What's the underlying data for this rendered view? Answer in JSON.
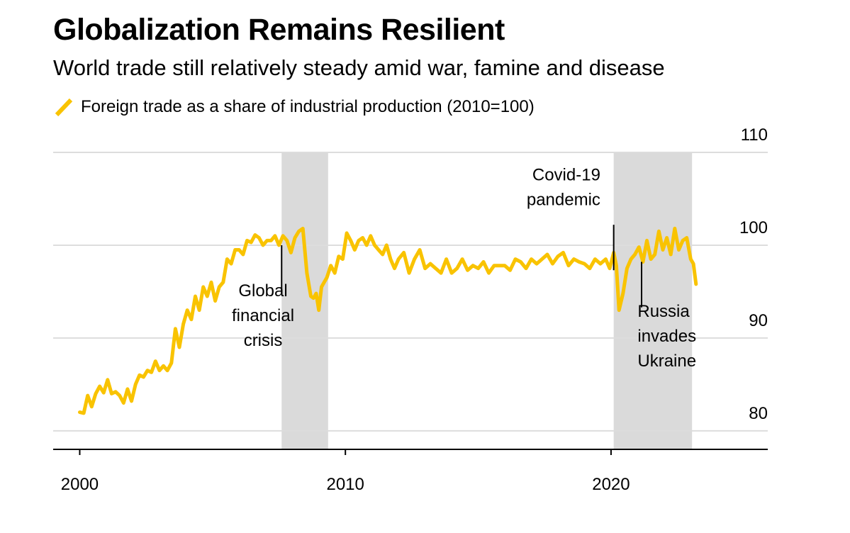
{
  "header": {
    "title": "Globalization Remains Resilient",
    "subtitle": "World trade still relatively steady amid war, famine and disease"
  },
  "legend": {
    "label": "Foreign trade as a share of industrial production (2010=100)"
  },
  "colors": {
    "series": "#f9c300",
    "shade": "#dadada",
    "grid": "#dddddd",
    "axis": "#000000"
  },
  "chart_data": {
    "type": "line",
    "title": "Globalization Remains Resilient",
    "subtitle": "World trade still relatively steady amid war, famine and disease",
    "xlabel": "",
    "ylabel": "",
    "xlim": [
      1999,
      2025.9
    ],
    "ylim": [
      78,
      110
    ],
    "y_axis_side": "right",
    "grid": true,
    "legend_placement": "top-left",
    "x_ticks": [
      {
        "x": 2000,
        "label": "2000"
      },
      {
        "x": 2010,
        "label": "2010"
      },
      {
        "x": 2020,
        "label": "2020"
      }
    ],
    "y_ticks": [
      {
        "y": 110,
        "label": "110"
      },
      {
        "y": 100,
        "label": "100"
      },
      {
        "y": 90,
        "label": "90"
      },
      {
        "y": 80,
        "label": "80"
      }
    ],
    "shaded_periods": [
      {
        "start": 2007.6,
        "end": 2009.35
      },
      {
        "start": 2020.1,
        "end": 2023.05
      }
    ],
    "annotations": [
      {
        "lines": [
          "Global",
          "financial",
          "crisis"
        ],
        "x": 2007.6,
        "y_from": 100.0,
        "y_to": 94.7,
        "text_x": 2006.9,
        "text_y": 94.5,
        "align": "middle"
      },
      {
        "lines": [
          "Covid-19",
          "pandemic"
        ],
        "x": 2020.1,
        "y_from": 97.3,
        "y_to": 102.2,
        "text_x": 2019.6,
        "text_y": 107.0,
        "align": "end"
      },
      {
        "lines": [
          "Russia",
          "invades",
          "Ukraine"
        ],
        "x": 2021.15,
        "y_from": 98.2,
        "y_to": 93.3,
        "text_x": 2021.0,
        "text_y": 92.3,
        "align": "start"
      }
    ],
    "series": [
      {
        "name": "Foreign trade as a share of industrial production (2010=100)",
        "x": [
          2000.0,
          2000.15,
          2000.3,
          2000.45,
          2000.6,
          2000.75,
          2000.9,
          2001.05,
          2001.2,
          2001.35,
          2001.5,
          2001.65,
          2001.8,
          2001.95,
          2002.1,
          2002.25,
          2002.4,
          2002.55,
          2002.7,
          2002.85,
          2003.0,
          2003.15,
          2003.3,
          2003.45,
          2003.6,
          2003.75,
          2003.9,
          2004.05,
          2004.2,
          2004.35,
          2004.5,
          2004.65,
          2004.8,
          2004.95,
          2005.1,
          2005.25,
          2005.4,
          2005.55,
          2005.7,
          2005.85,
          2006.0,
          2006.15,
          2006.3,
          2006.45,
          2006.6,
          2006.75,
          2006.9,
          2007.05,
          2007.2,
          2007.35,
          2007.5,
          2007.65,
          2007.8,
          2007.95,
          2008.1,
          2008.25,
          2008.4,
          2008.55,
          2008.7,
          2008.8,
          2008.9,
          2009.0,
          2009.1,
          2009.2,
          2009.3,
          2009.45,
          2009.6,
          2009.75,
          2009.9,
          2010.05,
          2010.2,
          2010.35,
          2010.5,
          2010.65,
          2010.8,
          2010.95,
          2011.1,
          2011.25,
          2011.4,
          2011.55,
          2011.7,
          2011.85,
          2012.0,
          2012.2,
          2012.4,
          2012.6,
          2012.8,
          2013.0,
          2013.2,
          2013.4,
          2013.6,
          2013.8,
          2014.0,
          2014.2,
          2014.4,
          2014.6,
          2014.8,
          2015.0,
          2015.2,
          2015.4,
          2015.6,
          2015.8,
          2016.0,
          2016.2,
          2016.4,
          2016.6,
          2016.8,
          2017.0,
          2017.2,
          2017.4,
          2017.6,
          2017.8,
          2018.0,
          2018.2,
          2018.4,
          2018.6,
          2018.8,
          2019.0,
          2019.2,
          2019.4,
          2019.6,
          2019.8,
          2019.95,
          2020.1,
          2020.2,
          2020.3,
          2020.45,
          2020.6,
          2020.75,
          2020.9,
          2021.05,
          2021.2,
          2021.35,
          2021.5,
          2021.65,
          2021.8,
          2021.95,
          2022.1,
          2022.25,
          2022.4,
          2022.55,
          2022.7,
          2022.85,
          2023.0,
          2023.1,
          2023.2
        ],
        "values": [
          82.0,
          81.9,
          83.8,
          82.6,
          84.0,
          84.8,
          84.1,
          85.5,
          84.0,
          84.2,
          83.8,
          83.0,
          84.5,
          83.2,
          85.0,
          86.0,
          85.8,
          86.5,
          86.3,
          87.5,
          86.5,
          87.0,
          86.5,
          87.3,
          91.0,
          89.0,
          91.5,
          93.0,
          92.0,
          94.5,
          93.0,
          95.5,
          94.5,
          96.0,
          94.0,
          95.5,
          96.0,
          98.5,
          98.0,
          99.5,
          99.5,
          99.0,
          100.5,
          100.3,
          101.1,
          100.8,
          100.0,
          100.5,
          100.5,
          101.0,
          100.0,
          101.0,
          100.5,
          99.2,
          100.8,
          101.5,
          101.8,
          97.0,
          94.5,
          94.3,
          94.8,
          93.0,
          95.5,
          96.0,
          96.5,
          97.8,
          97.0,
          98.8,
          98.5,
          101.3,
          100.5,
          99.5,
          100.5,
          100.8,
          100.0,
          101.0,
          100.0,
          99.5,
          99.0,
          100.0,
          98.5,
          97.5,
          98.5,
          99.2,
          97.0,
          98.5,
          99.5,
          97.5,
          98.0,
          97.5,
          97.0,
          98.5,
          97.0,
          97.5,
          98.5,
          97.3,
          97.8,
          97.5,
          98.2,
          97.0,
          97.8,
          97.8,
          97.8,
          97.3,
          98.5,
          98.2,
          97.5,
          98.5,
          98.0,
          98.5,
          99.0,
          98.0,
          98.8,
          99.2,
          97.8,
          98.5,
          98.2,
          98.0,
          97.5,
          98.5,
          98.0,
          98.5,
          97.5,
          99.2,
          97.8,
          93.0,
          94.8,
          97.5,
          98.5,
          99.0,
          99.8,
          98.2,
          100.5,
          98.5,
          99.0,
          101.5,
          99.5,
          100.8,
          99.0,
          101.8,
          99.5,
          100.5,
          100.8,
          98.5,
          98.0,
          95.8
        ]
      }
    ]
  }
}
